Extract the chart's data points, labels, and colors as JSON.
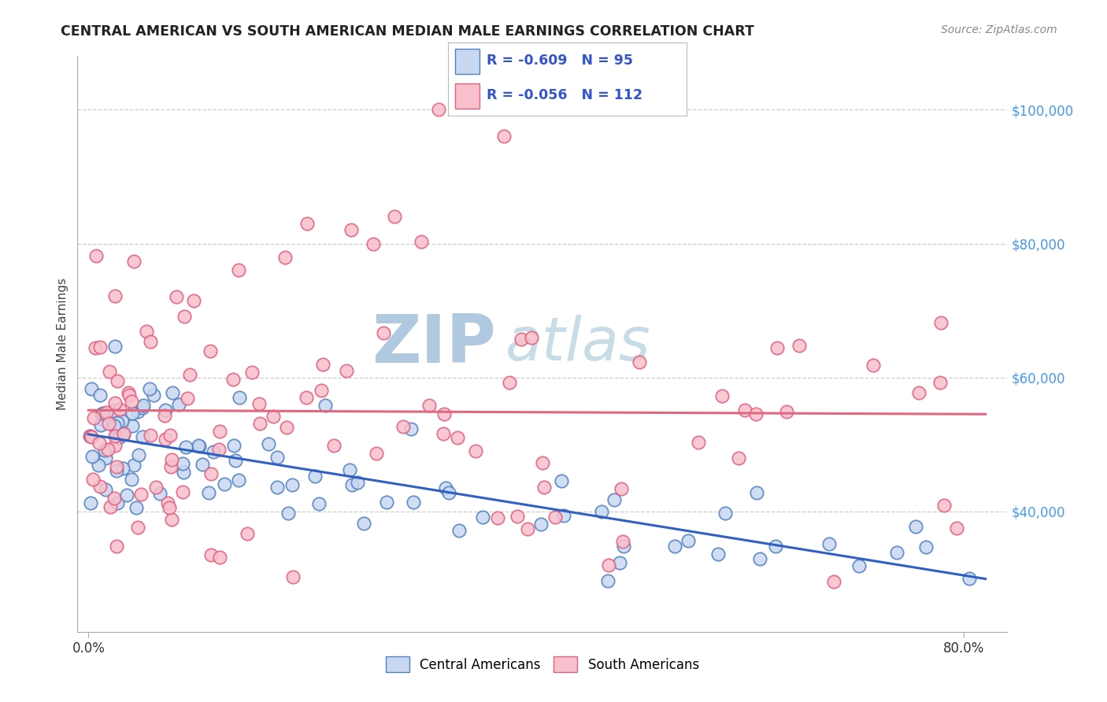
{
  "title": "CENTRAL AMERICAN VS SOUTH AMERICAN MEDIAN MALE EARNINGS CORRELATION CHART",
  "source": "Source: ZipAtlas.com",
  "ylabel": "Median Male Earnings",
  "xlabel_ticks": [
    "0.0%",
    "80.0%"
  ],
  "xlabel_vals": [
    0.0,
    0.8
  ],
  "ytick_labels": [
    "$40,000",
    "$60,000",
    "$80,000",
    "$100,000"
  ],
  "ytick_vals": [
    40000,
    60000,
    80000,
    100000
  ],
  "xlim": [
    -0.01,
    0.84
  ],
  "ylim": [
    22000,
    108000
  ],
  "watermark_zip": "ZIP",
  "watermark_atlas": "atlas",
  "legend_blue_label": "Central Americans",
  "legend_pink_label": "South Americans",
  "R_blue": "-0.609",
  "N_blue": "95",
  "R_pink": "-0.056",
  "N_pink": "112",
  "blue_face": "#c8d8f0",
  "blue_edge": "#5080c0",
  "pink_face": "#f8c0cc",
  "pink_edge": "#e06080",
  "trendline_blue": "#3060c0",
  "trendline_pink": "#e06880",
  "grid_color": "#cccccc",
  "axis_color": "#aaaaaa",
  "title_color": "#222222",
  "source_color": "#888888",
  "ylabel_color": "#444444",
  "ytick_color": "#4499ee",
  "xtick_color": "#333333",
  "legend_text_color": "#3355cc",
  "watermark_zip_color": "#b0c8e0",
  "watermark_atlas_color": "#c8dce8"
}
